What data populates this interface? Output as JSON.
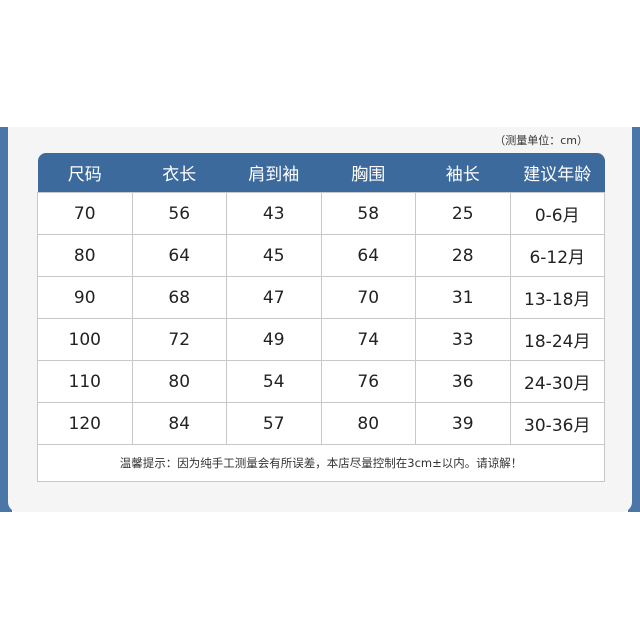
{
  "unit_note": "（测量单位：cm）",
  "headers": [
    "尺码",
    "衣长",
    "肩到袖",
    "胸围",
    "袖长",
    "建议年龄"
  ],
  "rows": [
    [
      "70",
      "56",
      "43",
      "58",
      "25",
      "0-6月"
    ],
    [
      "80",
      "64",
      "45",
      "64",
      "28",
      "6-12月"
    ],
    [
      "90",
      "68",
      "47",
      "70",
      "31",
      "13-18月"
    ],
    [
      "100",
      "72",
      "49",
      "74",
      "33",
      "18-24月"
    ],
    [
      "110",
      "80",
      "54",
      "76",
      "36",
      "24-30月"
    ],
    [
      "120",
      "84",
      "57",
      "80",
      "39",
      "30-36月"
    ]
  ],
  "footer_note": "温馨提示：因为纯手工测量会有所误差，本店尽量控制在3cm±以内。请谅解！",
  "colors": {
    "header": "#3d6a9c",
    "side": "#4a76a8",
    "panel": "#f5f5f5"
  }
}
